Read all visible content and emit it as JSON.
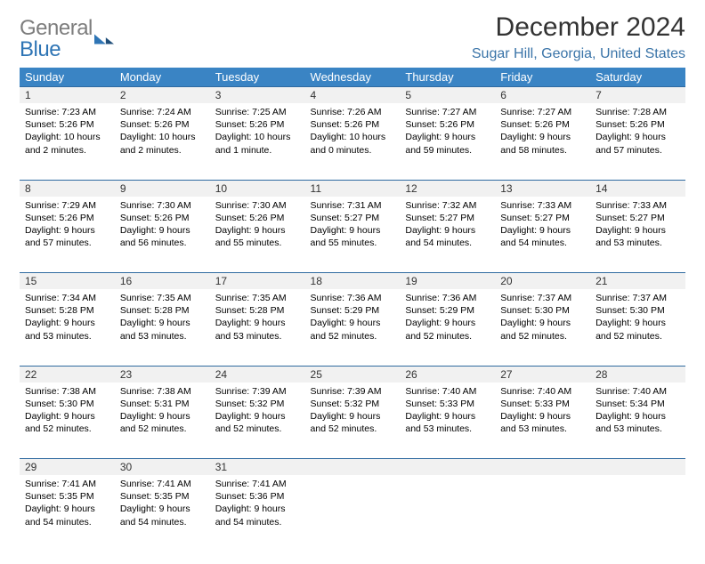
{
  "logo": {
    "word1": "General",
    "word2": "Blue"
  },
  "title": "December 2024",
  "location": "Sugar Hill, Georgia, United States",
  "colors": {
    "header_bg": "#3a84c4",
    "header_text": "#ffffff",
    "daynum_bg": "#f1f1f1",
    "row_border": "#2f6aa0",
    "logo_gray": "#7d7d7d",
    "logo_blue": "#2f75b5",
    "location_color": "#3a74a8"
  },
  "weekdays": [
    "Sunday",
    "Monday",
    "Tuesday",
    "Wednesday",
    "Thursday",
    "Friday",
    "Saturday"
  ],
  "weeks": [
    {
      "nums": [
        "1",
        "2",
        "3",
        "4",
        "5",
        "6",
        "7"
      ],
      "cells": [
        {
          "sunrise": "Sunrise: 7:23 AM",
          "sunset": "Sunset: 5:26 PM",
          "day1": "Daylight: 10 hours",
          "day2": "and 2 minutes."
        },
        {
          "sunrise": "Sunrise: 7:24 AM",
          "sunset": "Sunset: 5:26 PM",
          "day1": "Daylight: 10 hours",
          "day2": "and 2 minutes."
        },
        {
          "sunrise": "Sunrise: 7:25 AM",
          "sunset": "Sunset: 5:26 PM",
          "day1": "Daylight: 10 hours",
          "day2": "and 1 minute."
        },
        {
          "sunrise": "Sunrise: 7:26 AM",
          "sunset": "Sunset: 5:26 PM",
          "day1": "Daylight: 10 hours",
          "day2": "and 0 minutes."
        },
        {
          "sunrise": "Sunrise: 7:27 AM",
          "sunset": "Sunset: 5:26 PM",
          "day1": "Daylight: 9 hours",
          "day2": "and 59 minutes."
        },
        {
          "sunrise": "Sunrise: 7:27 AM",
          "sunset": "Sunset: 5:26 PM",
          "day1": "Daylight: 9 hours",
          "day2": "and 58 minutes."
        },
        {
          "sunrise": "Sunrise: 7:28 AM",
          "sunset": "Sunset: 5:26 PM",
          "day1": "Daylight: 9 hours",
          "day2": "and 57 minutes."
        }
      ]
    },
    {
      "nums": [
        "8",
        "9",
        "10",
        "11",
        "12",
        "13",
        "14"
      ],
      "cells": [
        {
          "sunrise": "Sunrise: 7:29 AM",
          "sunset": "Sunset: 5:26 PM",
          "day1": "Daylight: 9 hours",
          "day2": "and 57 minutes."
        },
        {
          "sunrise": "Sunrise: 7:30 AM",
          "sunset": "Sunset: 5:26 PM",
          "day1": "Daylight: 9 hours",
          "day2": "and 56 minutes."
        },
        {
          "sunrise": "Sunrise: 7:30 AM",
          "sunset": "Sunset: 5:26 PM",
          "day1": "Daylight: 9 hours",
          "day2": "and 55 minutes."
        },
        {
          "sunrise": "Sunrise: 7:31 AM",
          "sunset": "Sunset: 5:27 PM",
          "day1": "Daylight: 9 hours",
          "day2": "and 55 minutes."
        },
        {
          "sunrise": "Sunrise: 7:32 AM",
          "sunset": "Sunset: 5:27 PM",
          "day1": "Daylight: 9 hours",
          "day2": "and 54 minutes."
        },
        {
          "sunrise": "Sunrise: 7:33 AM",
          "sunset": "Sunset: 5:27 PM",
          "day1": "Daylight: 9 hours",
          "day2": "and 54 minutes."
        },
        {
          "sunrise": "Sunrise: 7:33 AM",
          "sunset": "Sunset: 5:27 PM",
          "day1": "Daylight: 9 hours",
          "day2": "and 53 minutes."
        }
      ]
    },
    {
      "nums": [
        "15",
        "16",
        "17",
        "18",
        "19",
        "20",
        "21"
      ],
      "cells": [
        {
          "sunrise": "Sunrise: 7:34 AM",
          "sunset": "Sunset: 5:28 PM",
          "day1": "Daylight: 9 hours",
          "day2": "and 53 minutes."
        },
        {
          "sunrise": "Sunrise: 7:35 AM",
          "sunset": "Sunset: 5:28 PM",
          "day1": "Daylight: 9 hours",
          "day2": "and 53 minutes."
        },
        {
          "sunrise": "Sunrise: 7:35 AM",
          "sunset": "Sunset: 5:28 PM",
          "day1": "Daylight: 9 hours",
          "day2": "and 53 minutes."
        },
        {
          "sunrise": "Sunrise: 7:36 AM",
          "sunset": "Sunset: 5:29 PM",
          "day1": "Daylight: 9 hours",
          "day2": "and 52 minutes."
        },
        {
          "sunrise": "Sunrise: 7:36 AM",
          "sunset": "Sunset: 5:29 PM",
          "day1": "Daylight: 9 hours",
          "day2": "and 52 minutes."
        },
        {
          "sunrise": "Sunrise: 7:37 AM",
          "sunset": "Sunset: 5:30 PM",
          "day1": "Daylight: 9 hours",
          "day2": "and 52 minutes."
        },
        {
          "sunrise": "Sunrise: 7:37 AM",
          "sunset": "Sunset: 5:30 PM",
          "day1": "Daylight: 9 hours",
          "day2": "and 52 minutes."
        }
      ]
    },
    {
      "nums": [
        "22",
        "23",
        "24",
        "25",
        "26",
        "27",
        "28"
      ],
      "cells": [
        {
          "sunrise": "Sunrise: 7:38 AM",
          "sunset": "Sunset: 5:30 PM",
          "day1": "Daylight: 9 hours",
          "day2": "and 52 minutes."
        },
        {
          "sunrise": "Sunrise: 7:38 AM",
          "sunset": "Sunset: 5:31 PM",
          "day1": "Daylight: 9 hours",
          "day2": "and 52 minutes."
        },
        {
          "sunrise": "Sunrise: 7:39 AM",
          "sunset": "Sunset: 5:32 PM",
          "day1": "Daylight: 9 hours",
          "day2": "and 52 minutes."
        },
        {
          "sunrise": "Sunrise: 7:39 AM",
          "sunset": "Sunset: 5:32 PM",
          "day1": "Daylight: 9 hours",
          "day2": "and 52 minutes."
        },
        {
          "sunrise": "Sunrise: 7:40 AM",
          "sunset": "Sunset: 5:33 PM",
          "day1": "Daylight: 9 hours",
          "day2": "and 53 minutes."
        },
        {
          "sunrise": "Sunrise: 7:40 AM",
          "sunset": "Sunset: 5:33 PM",
          "day1": "Daylight: 9 hours",
          "day2": "and 53 minutes."
        },
        {
          "sunrise": "Sunrise: 7:40 AM",
          "sunset": "Sunset: 5:34 PM",
          "day1": "Daylight: 9 hours",
          "day2": "and 53 minutes."
        }
      ]
    },
    {
      "nums": [
        "29",
        "30",
        "31",
        "",
        "",
        "",
        ""
      ],
      "cells": [
        {
          "sunrise": "Sunrise: 7:41 AM",
          "sunset": "Sunset: 5:35 PM",
          "day1": "Daylight: 9 hours",
          "day2": "and 54 minutes."
        },
        {
          "sunrise": "Sunrise: 7:41 AM",
          "sunset": "Sunset: 5:35 PM",
          "day1": "Daylight: 9 hours",
          "day2": "and 54 minutes."
        },
        {
          "sunrise": "Sunrise: 7:41 AM",
          "sunset": "Sunset: 5:36 PM",
          "day1": "Daylight: 9 hours",
          "day2": "and 54 minutes."
        },
        null,
        null,
        null,
        null
      ]
    }
  ]
}
